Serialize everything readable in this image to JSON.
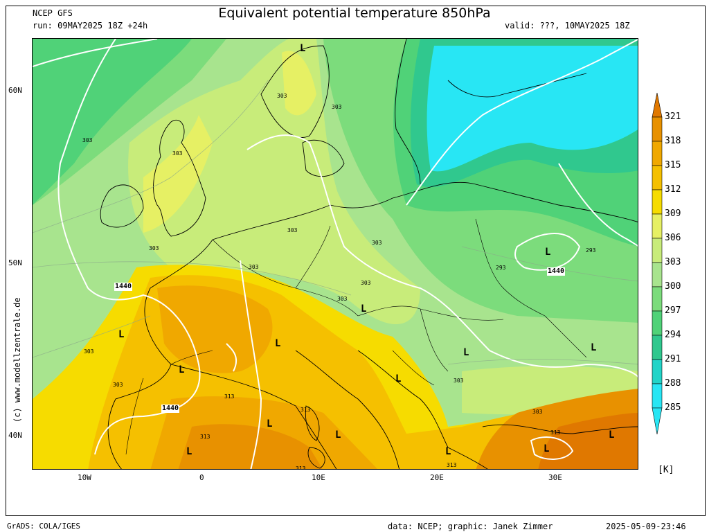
{
  "header": {
    "model": "NCEP GFS",
    "run": "run: 09MAY2025 18Z +24h",
    "title": "Equivalent potential temperature 850hPa",
    "valid": "valid: ???, 10MAY2025 18Z"
  },
  "map": {
    "lat_labels": [
      "60N",
      "50N",
      "40N"
    ],
    "lon_labels": [
      "10W",
      "0",
      "10E",
      "20E",
      "30E"
    ],
    "low_label": "L",
    "contour_labels": {
      "geopotential": "1440",
      "theta_e": [
        "303",
        "313",
        "293"
      ]
    }
  },
  "colorbar": {
    "levels": [
      "321",
      "318",
      "315",
      "312",
      "309",
      "306",
      "303",
      "300",
      "297",
      "294",
      "291",
      "288",
      "285"
    ],
    "colors": [
      "#e07800",
      "#e89100",
      "#f0a800",
      "#f5c000",
      "#f6dc00",
      "#e6f064",
      "#c8ec7a",
      "#a8e48e",
      "#7cdc7c",
      "#50d278",
      "#30c88e",
      "#22d4c8",
      "#28e6f4"
    ],
    "unit": "[K]"
  },
  "watermark": "(c) www.modellzentrale.de",
  "footer": {
    "left": "GrADS: COLA/IGES",
    "credit": "data: NCEP; graphic: Janek Zimmer",
    "timestamp": "2025-05-09-23:46"
  }
}
